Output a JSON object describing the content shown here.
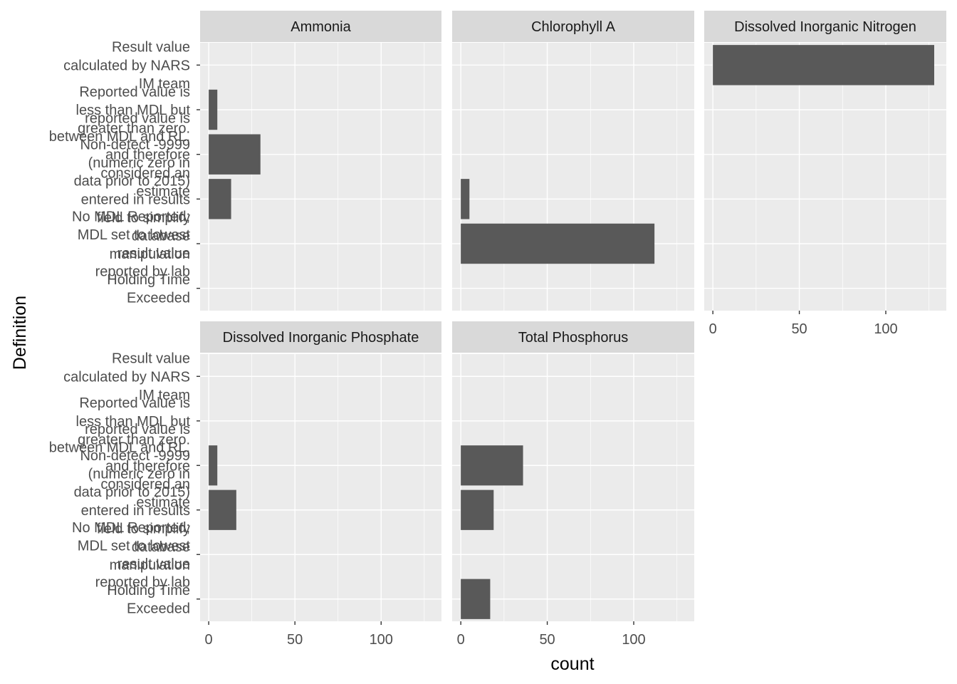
{
  "chart_data": {
    "type": "bar",
    "orientation": "horizontal",
    "facet_layout": "wrap, 3 columns",
    "xlabel": "count",
    "ylabel": "Definition",
    "xlim": [
      -5,
      135
    ],
    "x_ticks": [
      0,
      50,
      100
    ],
    "grid": true,
    "categories": [
      "Result value calculated by NARS IM team",
      "Reported value is less than MDL but greater than zero.",
      "reported value is between MDL and RL, and therefore considered an estimate",
      "Non-detect -9999 (numeric zero in data prior to 2015) entered in results field to simplify database manipulation",
      "No MDL Reported; MDL set to lowest result value reported by lab",
      "Holding Time Exceeded"
    ],
    "category_label_lines": [
      [
        "Result value",
        "calculated by NARS",
        "IM team"
      ],
      [
        "Reported value is",
        "less than MDL but",
        "greater than zero."
      ],
      [
        "reported value is",
        "between MDL and RL,",
        "and therefore",
        "considered an",
        "estimate"
      ],
      [
        "Non-detect -9999",
        "(numeric zero in",
        "data prior to 2015)",
        "entered in results",
        "field to simplify",
        "database",
        "manipulation"
      ],
      [
        "No MDL Reported;",
        "MDL set to lowest",
        "result value",
        "reported by lab"
      ],
      [
        "Holding Time",
        "Exceeded"
      ]
    ],
    "panels": [
      {
        "title": "Ammonia",
        "values": [
          0,
          5,
          30,
          13,
          0,
          0
        ]
      },
      {
        "title": "Chlorophyll A",
        "values": [
          0,
          0,
          0,
          5,
          112,
          0
        ]
      },
      {
        "title": "Dissolved Inorganic Nitrogen",
        "values": [
          128,
          0,
          0,
          0,
          0,
          0
        ]
      },
      {
        "title": "Dissolved Inorganic Phosphate",
        "values": [
          0,
          0,
          5,
          16,
          0,
          0
        ]
      },
      {
        "title": "Total Phosphorus",
        "values": [
          0,
          0,
          36,
          19,
          0,
          17
        ]
      }
    ]
  }
}
